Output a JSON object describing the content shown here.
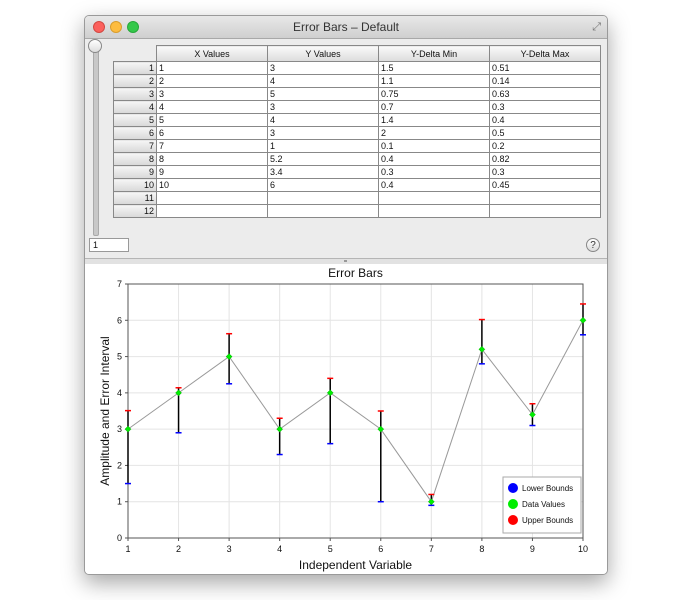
{
  "window": {
    "title": "Error Bars – Default"
  },
  "table": {
    "columns": [
      "X Values",
      "Y Values",
      "Y-Delta Min",
      "Y-Delta Max"
    ],
    "rows": [
      {
        "num": "1",
        "cells": [
          "1",
          "3",
          "1.5",
          "0.51"
        ]
      },
      {
        "num": "2",
        "cells": [
          "2",
          "4",
          "1.1",
          "0.14"
        ]
      },
      {
        "num": "3",
        "cells": [
          "3",
          "5",
          "0.75",
          "0.63"
        ]
      },
      {
        "num": "4",
        "cells": [
          "4",
          "3",
          "0.7",
          "0.3"
        ]
      },
      {
        "num": "5",
        "cells": [
          "5",
          "4",
          "1.4",
          "0.4"
        ]
      },
      {
        "num": "6",
        "cells": [
          "6",
          "3",
          "2",
          "0.5"
        ]
      },
      {
        "num": "7",
        "cells": [
          "7",
          "1",
          "0.1",
          "0.2"
        ]
      },
      {
        "num": "8",
        "cells": [
          "8",
          "5.2",
          "0.4",
          "0.82"
        ]
      },
      {
        "num": "9",
        "cells": [
          "9",
          "3.4",
          "0.3",
          "0.3"
        ]
      },
      {
        "num": "10",
        "cells": [
          "10",
          "6",
          "0.4",
          "0.45"
        ]
      },
      {
        "num": "11",
        "cells": [
          "",
          "",
          "",
          ""
        ]
      },
      {
        "num": "12",
        "cells": [
          "",
          "",
          "",
          ""
        ]
      }
    ]
  },
  "row_field": {
    "value": "1"
  },
  "help_label": "?",
  "chart_data": {
    "type": "scatter",
    "title": "Error Bars",
    "xlabel": "Independent Variable",
    "ylabel": "Amplitude and Error Interval",
    "xlim": [
      1,
      10
    ],
    "ylim": [
      0,
      7
    ],
    "xticks": [
      "1",
      "2",
      "3",
      "4",
      "5",
      "6",
      "7",
      "8",
      "9",
      "10"
    ],
    "yticks": [
      "0",
      "1",
      "2",
      "3",
      "4",
      "5",
      "6",
      "7"
    ],
    "grid": true,
    "legend_position": "bottom-right",
    "x": [
      1,
      2,
      3,
      4,
      5,
      6,
      7,
      8,
      9,
      10
    ],
    "y": [
      3,
      4,
      5,
      3,
      4,
      3,
      1,
      5.2,
      3.4,
      6
    ],
    "delta_min": [
      1.5,
      1.1,
      0.75,
      0.7,
      1.4,
      2,
      0.1,
      0.4,
      0.3,
      0.4
    ],
    "delta_max": [
      0.51,
      0.14,
      0.63,
      0.3,
      0.4,
      0.5,
      0.2,
      0.82,
      0.3,
      0.45
    ],
    "legend": [
      {
        "label": "Lower Bounds",
        "color": "#0000ff"
      },
      {
        "label": "Data Values",
        "color": "#00ee00"
      },
      {
        "label": "Upper Bounds",
        "color": "#ff0000"
      }
    ],
    "line_color": "#999999"
  }
}
